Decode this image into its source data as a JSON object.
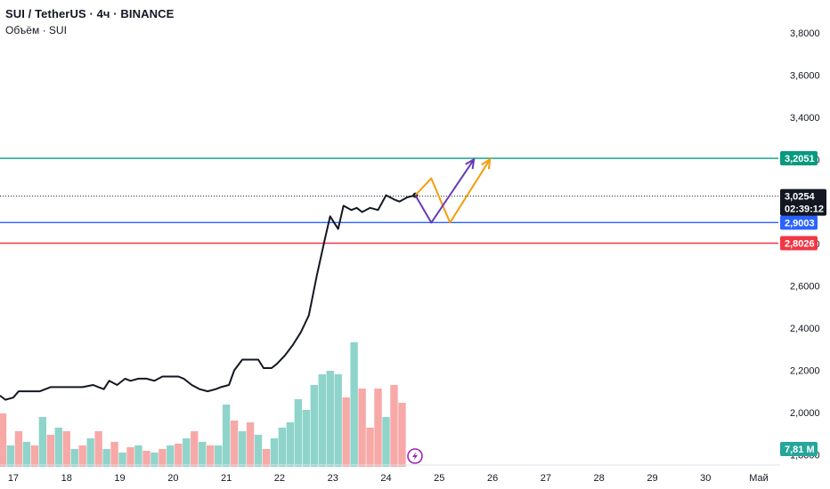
{
  "header": {
    "symbol_title": "SUI / TetherUS · 4ч · BINANCE",
    "volume_title": "Объём · SUI"
  },
  "price_scale": {
    "labels": [
      "3,8000",
      "3,6000",
      "3,4000",
      "3,2000",
      "3,0000",
      "2,8000",
      "2,6000",
      "2,4000",
      "2,2000",
      "2,0000",
      "1,8000"
    ]
  },
  "time_scale": {
    "labels": [
      "17",
      "18",
      "19",
      "20",
      "21",
      "22",
      "23",
      "24",
      "25",
      "26",
      "27",
      "28",
      "29",
      "30",
      "Май"
    ]
  },
  "levels": [
    {
      "name": "resistance",
      "price": 3.2051,
      "label": "3,2051",
      "color": "#089981"
    },
    {
      "name": "support",
      "price": 2.9003,
      "label": "2,9003",
      "color": "#2962ff"
    },
    {
      "name": "stop",
      "price": 2.8026,
      "label": "2,8026",
      "color": "#f23645"
    }
  ],
  "last_price": {
    "price": 3.0254,
    "label": "3,0254",
    "countdown": "02:39:12"
  },
  "volume_badge": {
    "label": "7,81 M",
    "color": "#26a69a"
  },
  "chart_data": {
    "type": "line",
    "x_unit": "day of April",
    "ylim": [
      1.78,
      3.88
    ],
    "xlim": [
      16.75,
      31.3
    ],
    "price_series": {
      "x": [
        16.75,
        16.85,
        17.0,
        17.1,
        17.3,
        17.5,
        17.7,
        17.9,
        18.1,
        18.3,
        18.5,
        18.6,
        18.7,
        18.8,
        18.95,
        19.1,
        19.2,
        19.35,
        19.5,
        19.65,
        19.8,
        19.95,
        20.1,
        20.2,
        20.35,
        20.5,
        20.65,
        20.8,
        20.9,
        21.05,
        21.15,
        21.3,
        21.45,
        21.6,
        21.7,
        21.85,
        21.95,
        22.1,
        22.25,
        22.4,
        22.55,
        22.7,
        22.85,
        22.95,
        23.1,
        23.2,
        23.35,
        23.45,
        23.55,
        23.7,
        23.85,
        24.0,
        24.15,
        24.25,
        24.4,
        24.55
      ],
      "y": [
        2.08,
        2.06,
        2.07,
        2.1,
        2.1,
        2.1,
        2.12,
        2.12,
        2.12,
        2.12,
        2.13,
        2.12,
        2.11,
        2.15,
        2.13,
        2.16,
        2.15,
        2.16,
        2.16,
        2.15,
        2.17,
        2.17,
        2.17,
        2.16,
        2.13,
        2.11,
        2.1,
        2.11,
        2.12,
        2.13,
        2.2,
        2.25,
        2.25,
        2.25,
        2.21,
        2.21,
        2.23,
        2.27,
        2.32,
        2.38,
        2.46,
        2.65,
        2.82,
        2.93,
        2.87,
        2.98,
        2.96,
        2.97,
        2.95,
        2.97,
        2.96,
        3.03,
        3.01,
        3.0,
        3.02,
        3.03
      ]
    },
    "projections": [
      {
        "name": "projection-orange",
        "color": "#f59d0c",
        "points": [
          [
            24.55,
            3.03
          ],
          [
            24.85,
            3.11
          ],
          [
            25.2,
            2.9
          ],
          [
            25.95,
            3.2
          ]
        ]
      },
      {
        "name": "projection-purple",
        "color": "#673ab7",
        "points": [
          [
            24.55,
            3.03
          ],
          [
            24.85,
            2.9
          ],
          [
            25.65,
            3.2
          ]
        ]
      }
    ],
    "volume_series": {
      "x": [
        16.8,
        16.95,
        17.1,
        17.25,
        17.4,
        17.55,
        17.7,
        17.85,
        18.0,
        18.15,
        18.3,
        18.45,
        18.6,
        18.75,
        18.9,
        19.05,
        19.2,
        19.35,
        19.5,
        19.65,
        19.8,
        19.95,
        20.1,
        20.25,
        20.4,
        20.55,
        20.7,
        20.85,
        21.0,
        21.15,
        21.3,
        21.45,
        21.6,
        21.75,
        21.9,
        22.05,
        22.2,
        22.35,
        22.5,
        22.65,
        22.8,
        22.95,
        23.1,
        23.25,
        23.4,
        23.55,
        23.7,
        23.85,
        24.0,
        24.15,
        24.3
      ],
      "values": [
        0.3,
        0.12,
        0.2,
        0.14,
        0.12,
        0.28,
        0.18,
        0.22,
        0.2,
        0.1,
        0.12,
        0.16,
        0.2,
        0.1,
        0.14,
        0.08,
        0.11,
        0.12,
        0.09,
        0.08,
        0.1,
        0.12,
        0.13,
        0.16,
        0.2,
        0.14,
        0.12,
        0.12,
        0.35,
        0.26,
        0.2,
        0.25,
        0.18,
        0.1,
        0.16,
        0.22,
        0.25,
        0.38,
        0.32,
        0.46,
        0.52,
        0.54,
        0.52,
        0.39,
        0.7,
        0.44,
        0.22,
        0.44,
        0.28,
        0.46,
        0.36
      ],
      "colors": [
        "#f7a9a7",
        "#8fd4cb",
        "#f7a9a7",
        "#8fd4cb",
        "#f7a9a7",
        "#8fd4cb",
        "#f7a9a7",
        "#8fd4cb",
        "#f7a9a7",
        "#8fd4cb",
        "#f7a9a7",
        "#8fd4cb",
        "#f7a9a7",
        "#8fd4cb",
        "#f7a9a7",
        "#8fd4cb",
        "#f7a9a7",
        "#8fd4cb",
        "#f7a9a7",
        "#8fd4cb",
        "#f7a9a7",
        "#8fd4cb",
        "#f7a9a7",
        "#8fd4cb",
        "#f7a9a7",
        "#8fd4cb",
        "#f7a9a7",
        "#8fd4cb",
        "#8fd4cb",
        "#f7a9a7",
        "#8fd4cb",
        "#f7a9a7",
        "#8fd4cb",
        "#f7a9a7",
        "#8fd4cb",
        "#8fd4cb",
        "#8fd4cb",
        "#8fd4cb",
        "#8fd4cb",
        "#8fd4cb",
        "#8fd4cb",
        "#8fd4cb",
        "#8fd4cb",
        "#f7a9a7",
        "#8fd4cb",
        "#f7a9a7",
        "#f7a9a7",
        "#f7a9a7",
        "#8fd4cb",
        "#f7a9a7",
        "#f7a9a7"
      ]
    }
  }
}
